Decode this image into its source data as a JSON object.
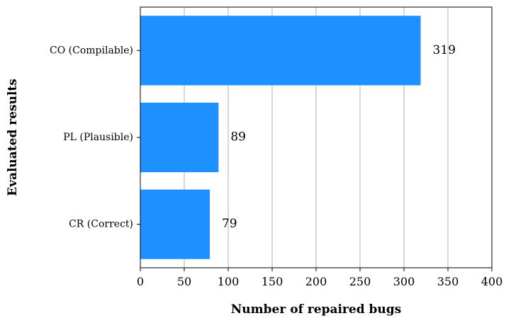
{
  "chart_data": {
    "type": "bar",
    "orientation": "horizontal",
    "categories": [
      "CO (Compilable)",
      "PL (Plausible)",
      "CR (Correct)"
    ],
    "values": [
      319,
      89,
      79
    ],
    "data_labels": [
      "319",
      "89",
      "79"
    ],
    "xlabel": "Number of repaired bugs",
    "ylabel": "Evaluated results",
    "xlim": [
      0,
      400
    ],
    "xticks": [
      0,
      50,
      100,
      150,
      200,
      250,
      300,
      350,
      400
    ],
    "xtick_labels": [
      "0",
      "50",
      "100",
      "150",
      "200",
      "250",
      "300",
      "350",
      "400"
    ],
    "grid": "vertical",
    "bar_color": "#1e90ff"
  }
}
